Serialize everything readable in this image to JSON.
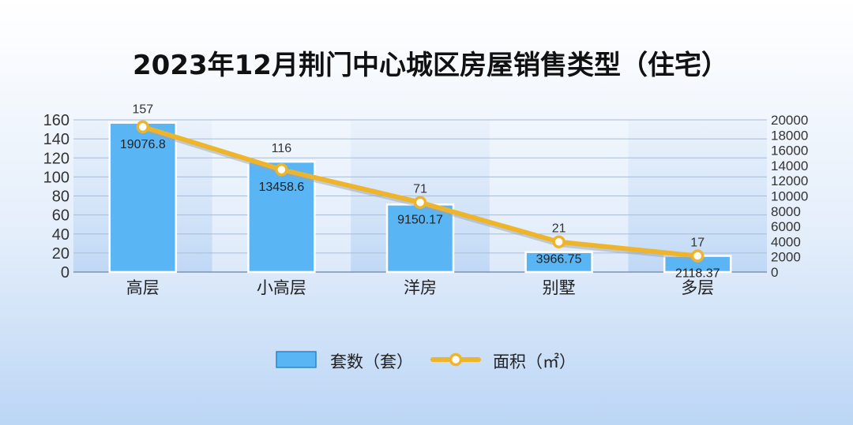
{
  "chart_data": {
    "type": "bar",
    "title": "2023年12月荆门中心城区房屋销售类型（住宅）",
    "categories": [
      "高层",
      "小高层",
      "洋房",
      "别墅",
      "多层"
    ],
    "series": [
      {
        "name": "套数（套）",
        "type": "bar",
        "axis": "left",
        "values": [
          157,
          116,
          71,
          21,
          17
        ],
        "labels": [
          "157",
          "116",
          "71",
          "21",
          "17"
        ]
      },
      {
        "name": "面积（㎡）",
        "type": "line",
        "axis": "right",
        "values": [
          19076.8,
          13458.6,
          9150.17,
          3966.75,
          2118.37
        ],
        "labels": [
          "19076.8",
          "13458.6",
          "9150.17",
          "3966.75",
          "2118.37"
        ]
      }
    ],
    "y_left": {
      "range": [
        0,
        160
      ],
      "ticks": [
        "0",
        "20",
        "40",
        "60",
        "80",
        "100",
        "120",
        "140",
        "160"
      ]
    },
    "y_right": {
      "range": [
        0,
        20000
      ],
      "ticks": [
        "0",
        "2000",
        "4000",
        "6000",
        "8000",
        "10000",
        "12000",
        "14000",
        "16000",
        "18000",
        "20000"
      ]
    },
    "grid": true,
    "legend_position": "bottom-center",
    "colors": {
      "bar": "#5ab5f5",
      "bar_stroke": "#ffffff",
      "line": "#efb52a",
      "marker_fill": "#ffffff",
      "band": "#cfe2f7",
      "grid": "#a9bcd6",
      "text": "#222222"
    }
  }
}
